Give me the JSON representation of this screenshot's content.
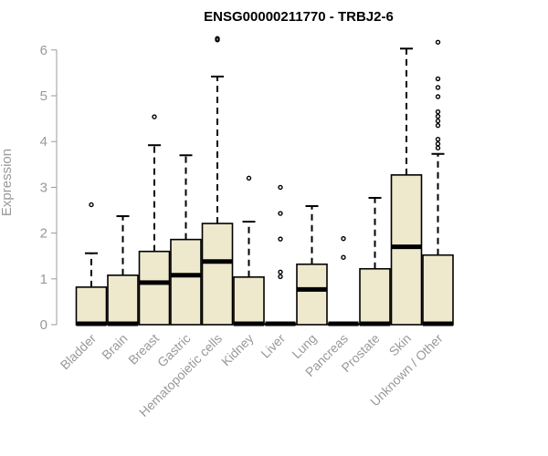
{
  "chart_data": {
    "type": "box",
    "title": "ENSG00000211770 - TRBJ2-6",
    "xlabel": "",
    "ylabel": "Expression",
    "ylim": [
      0,
      6.2
    ],
    "yticks": [
      0,
      1,
      2,
      3,
      4,
      5,
      6
    ],
    "grid": false,
    "colors": {
      "box_fill": "#EEE8CD",
      "stroke": "#000000",
      "axis_text": "#999999"
    },
    "categories": [
      "Bladder",
      "Brain",
      "Breast",
      "Gastric",
      "Hematopoietic cells",
      "Kidney",
      "Liver",
      "Lung",
      "Pancreas",
      "Prostate",
      "Skin",
      "Unknown / Other"
    ],
    "boxes": [
      {
        "q1": 0,
        "median": 0.02,
        "q3": 0.82,
        "whisker_low": 0,
        "whisker_high": 1.56,
        "outliers": [
          2.62
        ]
      },
      {
        "q1": 0,
        "median": 0.02,
        "q3": 1.08,
        "whisker_low": 0,
        "whisker_high": 2.37,
        "outliers": []
      },
      {
        "q1": 0,
        "median": 0.92,
        "q3": 1.6,
        "whisker_low": 0,
        "whisker_high": 3.92,
        "outliers": [
          4.54
        ]
      },
      {
        "q1": 0,
        "median": 1.08,
        "q3": 1.86,
        "whisker_low": 0,
        "whisker_high": 3.7,
        "outliers": []
      },
      {
        "q1": 0,
        "median": 1.38,
        "q3": 2.21,
        "whisker_low": 0,
        "whisker_high": 5.42,
        "outliers": [
          6.22,
          6.25
        ]
      },
      {
        "q1": 0,
        "median": 0.02,
        "q3": 1.04,
        "whisker_low": 0,
        "whisker_high": 2.25,
        "outliers": [
          3.2
        ]
      },
      {
        "q1": 0,
        "median": 0.02,
        "q3": 0.02,
        "whisker_low": 0,
        "whisker_high": 0.02,
        "outliers": [
          1.05,
          1.15,
          1.87,
          2.43,
          3.0
        ]
      },
      {
        "q1": 0,
        "median": 0.77,
        "q3": 1.32,
        "whisker_low": 0,
        "whisker_high": 2.59,
        "outliers": []
      },
      {
        "q1": 0,
        "median": 0.02,
        "q3": 0.02,
        "whisker_low": 0,
        "whisker_high": 0.02,
        "outliers": [
          1.47,
          1.88
        ]
      },
      {
        "q1": 0,
        "median": 0.02,
        "q3": 1.22,
        "whisker_low": 0,
        "whisker_high": 2.77,
        "outliers": []
      },
      {
        "q1": 0,
        "median": 1.7,
        "q3": 3.27,
        "whisker_low": 0,
        "whisker_high": 6.03,
        "outliers": []
      },
      {
        "q1": 0,
        "median": 0.02,
        "q3": 1.52,
        "whisker_low": 0,
        "whisker_high": 3.73,
        "outliers": [
          3.86,
          3.95,
          4.05,
          4.35,
          4.45,
          4.55,
          4.65,
          4.98,
          5.18,
          5.37,
          6.17
        ]
      }
    ]
  }
}
